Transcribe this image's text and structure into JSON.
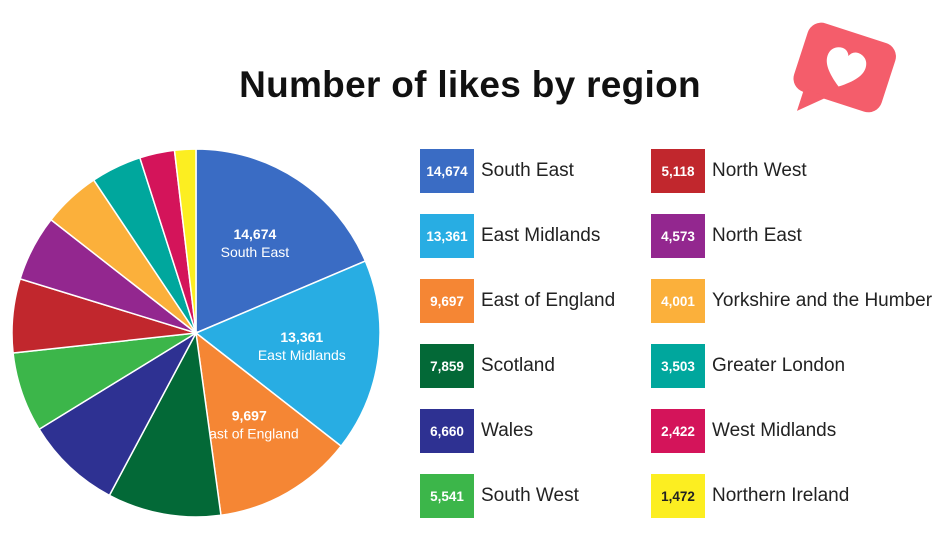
{
  "chart_data": {
    "type": "pie",
    "title": "Number of likes by region",
    "slices": [
      {
        "label": "South East",
        "value": 14674,
        "value_text": "14,674",
        "color": "#3a6cc4",
        "text_color": "#ffffff"
      },
      {
        "label": "East Midlands",
        "value": 13361,
        "value_text": "13,361",
        "color": "#28ade3",
        "text_color": "#ffffff"
      },
      {
        "label": "East of England",
        "value": 9697,
        "value_text": "9,697",
        "color": "#f58634",
        "text_color": "#ffffff"
      },
      {
        "label": "Scotland",
        "value": 7859,
        "value_text": "7,859",
        "color": "#036937",
        "text_color": "#ffffff"
      },
      {
        "label": "Wales",
        "value": 6660,
        "value_text": "6,660",
        "color": "#2e3192",
        "text_color": "#ffffff"
      },
      {
        "label": "South West",
        "value": 5541,
        "value_text": "5,541",
        "color": "#3cb64a",
        "text_color": "#ffffff"
      },
      {
        "label": "North West",
        "value": 5118,
        "value_text": "5,118",
        "color": "#c1272d",
        "text_color": "#ffffff"
      },
      {
        "label": "North East",
        "value": 4573,
        "value_text": "4,573",
        "color": "#93278f",
        "text_color": "#ffffff"
      },
      {
        "label": "Yorkshire and the Humber",
        "value": 4001,
        "value_text": "4,001",
        "color": "#fbb03b",
        "text_color": "#ffffff"
      },
      {
        "label": "Greater London",
        "value": 3503,
        "value_text": "3,503",
        "color": "#00a79d",
        "text_color": "#ffffff"
      },
      {
        "label": "West Midlands",
        "value": 2422,
        "value_text": "2,422",
        "color": "#d4145a",
        "text_color": "#ffffff"
      },
      {
        "label": "Northern Ireland",
        "value": 1472,
        "value_text": "1,472",
        "color": "#fcee21",
        "text_color": "#222222"
      }
    ],
    "labeled_slices": [
      0,
      1,
      2
    ],
    "legend_position": "right"
  },
  "icon": {
    "name": "heart-notification-icon",
    "color": "#f45d6b"
  }
}
